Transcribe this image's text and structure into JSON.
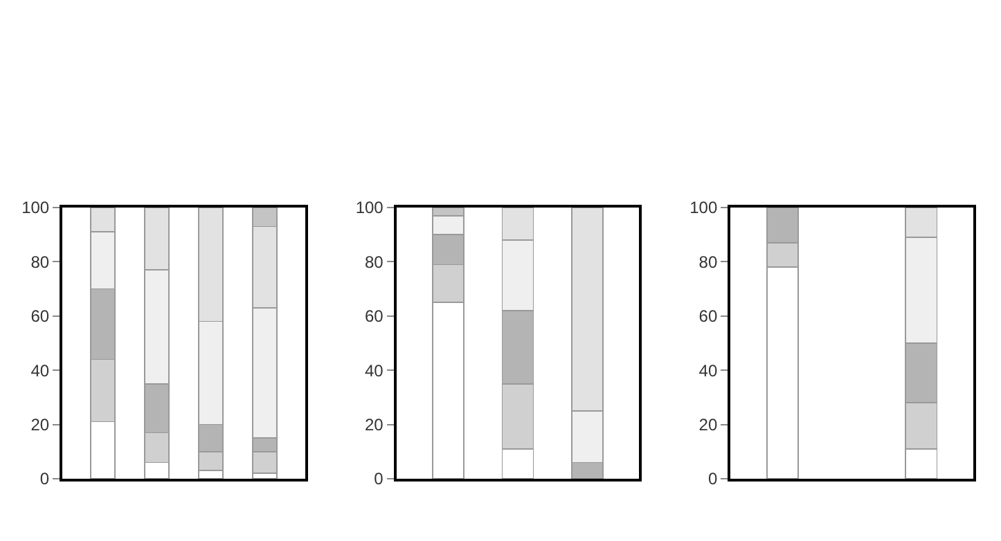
{
  "chart_data": [
    {
      "type": "bar",
      "stacked": true,
      "categories": [
        null,
        null,
        null,
        null
      ],
      "ylim": [
        0,
        100
      ],
      "yticks": [
        0,
        20,
        40,
        60,
        80,
        100
      ],
      "series": [
        {
          "color": "#ffffff",
          "values": [
            21,
            6,
            3,
            2
          ]
        },
        {
          "color": "#d0d0d0",
          "values": [
            23,
            11,
            7,
            8
          ]
        },
        {
          "color": "#b4b4b4",
          "values": [
            26,
            18,
            10,
            5
          ]
        },
        {
          "color": "#efefef",
          "values": [
            21,
            42,
            38,
            48
          ]
        },
        {
          "color": "#e2e2e2",
          "values": [
            9,
            23,
            42,
            30
          ]
        },
        {
          "color": "#c4c4c4",
          "values": [
            null,
            null,
            null,
            7
          ]
        }
      ]
    },
    {
      "type": "bar",
      "stacked": true,
      "categories": [
        null,
        null,
        null
      ],
      "ylim": [
        0,
        100
      ],
      "yticks": [
        0,
        20,
        40,
        60,
        80,
        100
      ],
      "series": [
        {
          "color": "#ffffff",
          "values": [
            65,
            11,
            null
          ]
        },
        {
          "color": "#d0d0d0",
          "values": [
            14,
            24,
            null
          ]
        },
        {
          "color": "#b4b4b4",
          "values": [
            11,
            27,
            6
          ]
        },
        {
          "color": "#efefef",
          "values": [
            7,
            26,
            19
          ]
        },
        {
          "color": "#e2e2e2",
          "values": [
            null,
            12,
            75
          ]
        },
        {
          "color": "#c4c4c4",
          "values": [
            3,
            null,
            null
          ]
        }
      ]
    },
    {
      "type": "bar",
      "stacked": true,
      "categories": [
        null,
        null,
        null
      ],
      "ylim": [
        0,
        100
      ],
      "yticks": [
        0,
        20,
        40,
        60,
        80,
        100
      ],
      "series": [
        {
          "color": "#ffffff",
          "values": [
            78,
            null,
            11
          ]
        },
        {
          "color": "#d0d0d0",
          "values": [
            9,
            null,
            17
          ]
        },
        {
          "color": "#b4b4b4",
          "values": [
            13,
            null,
            22
          ]
        },
        {
          "color": "#efefef",
          "values": [
            null,
            null,
            39
          ]
        },
        {
          "color": "#e2e2e2",
          "values": [
            null,
            null,
            11
          ]
        }
      ]
    }
  ]
}
